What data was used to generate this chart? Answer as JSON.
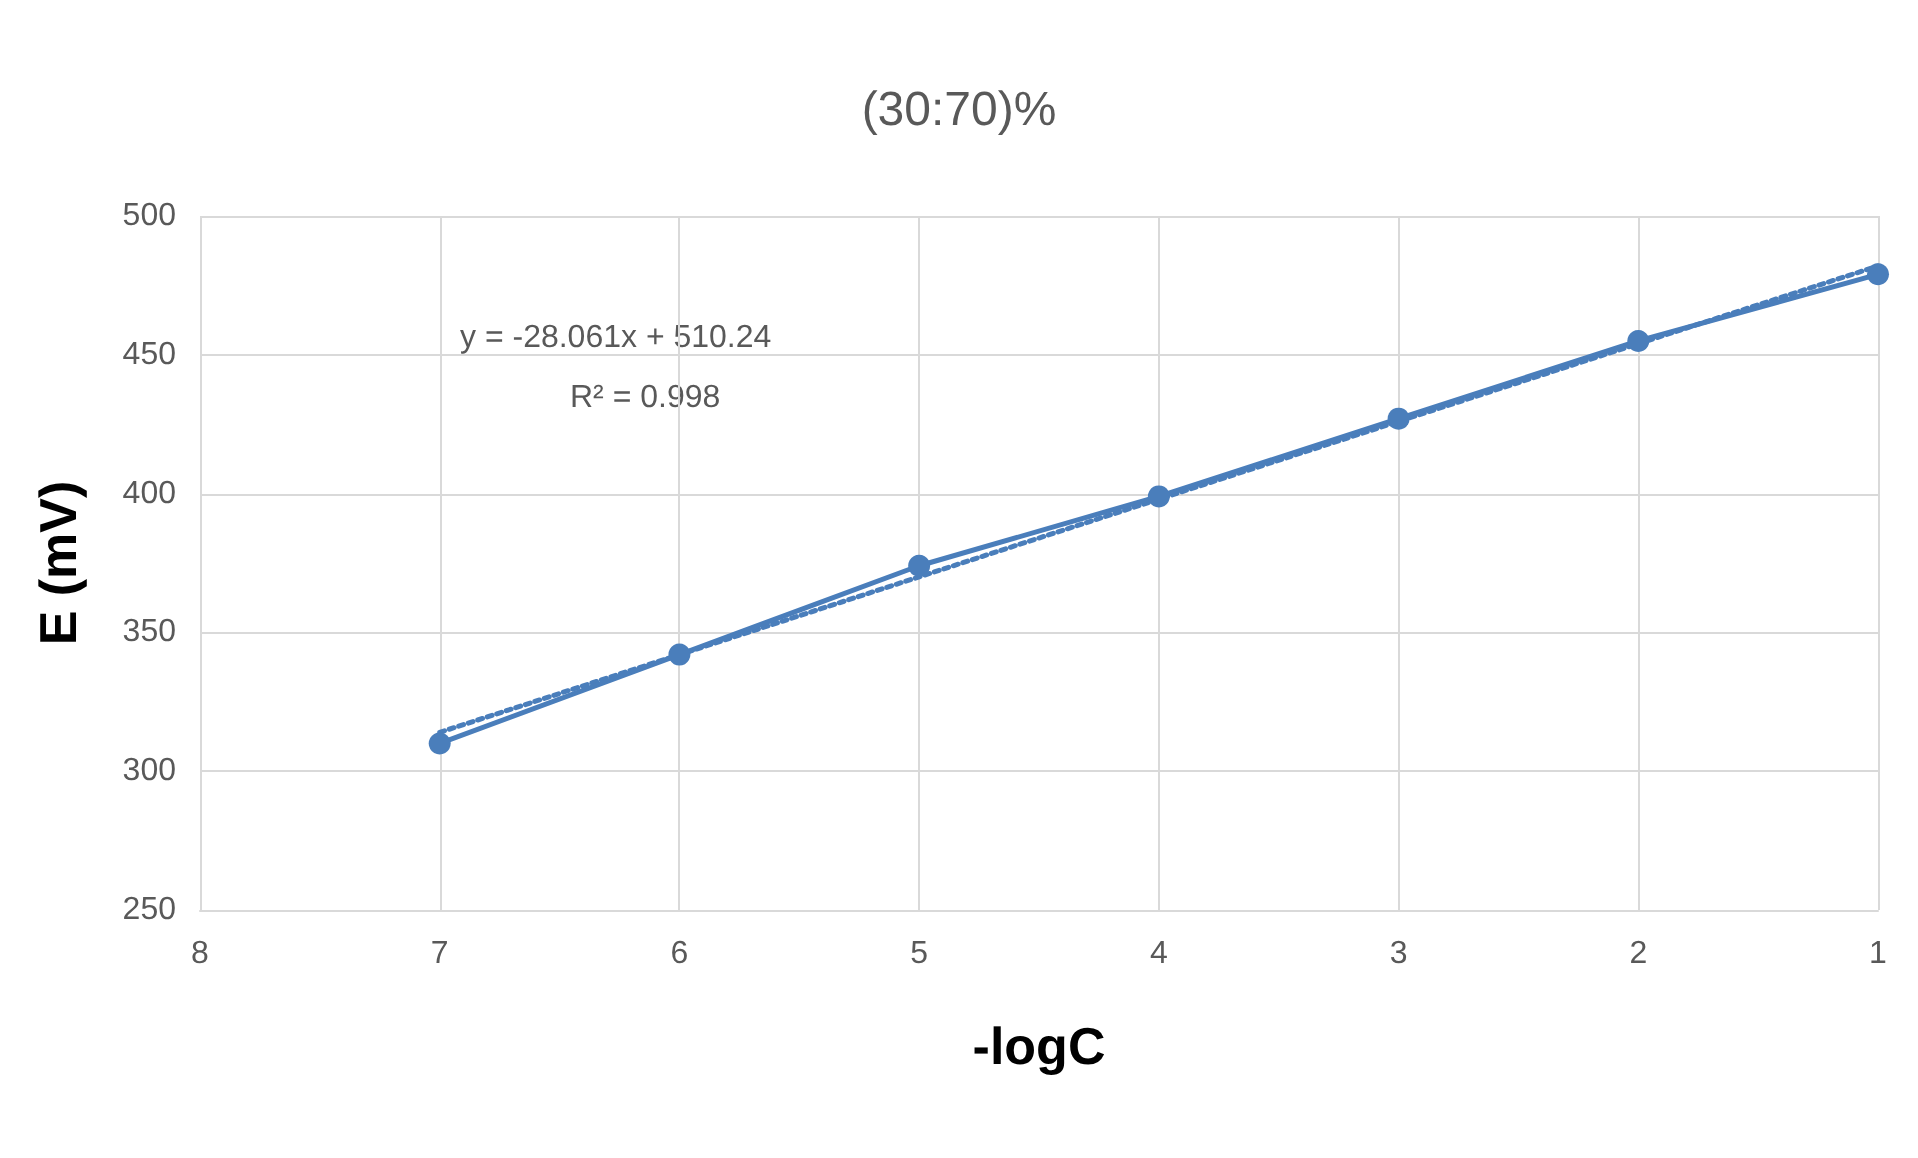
{
  "chart_data": {
    "type": "line",
    "title": "(30:70)%",
    "xlabel": "-logC",
    "ylabel": "E (mV)",
    "x": [
      7,
      6,
      5,
      4,
      3,
      2,
      1
    ],
    "series": [
      {
        "color": "#4a7ebb",
        "values": [
          310,
          342,
          374,
          399,
          427,
          455,
          479
        ],
        "marker": "circle",
        "line_style": "solid"
      },
      {
        "color": "#4a7ebb",
        "x": [
          7,
          1
        ],
        "values": [
          314,
          482
        ],
        "marker": "none",
        "line_style": "dotted"
      }
    ],
    "xlim": [
      8,
      1
    ],
    "xticks": [
      8,
      7,
      6,
      5,
      4,
      3,
      2,
      1
    ],
    "ylim": [
      250,
      500
    ],
    "yticks": [
      250,
      300,
      350,
      400,
      450,
      500
    ],
    "grid": true,
    "annotations": [
      "y = -28.061x + 510.24",
      "R² = 0.998"
    ]
  }
}
